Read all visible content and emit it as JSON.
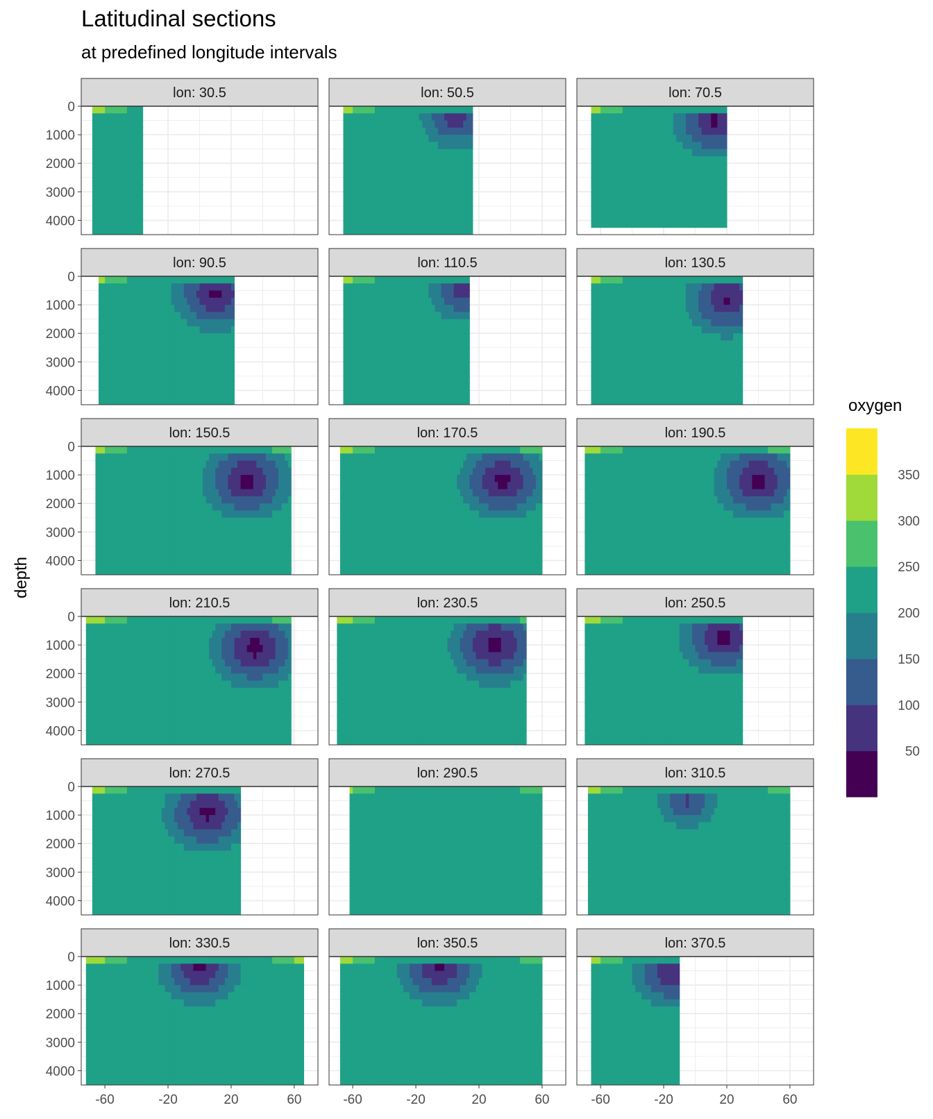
{
  "chart_data": {
    "type": "heatmap",
    "title": "Latitudinal sections",
    "subtitle": "at predefined longitude intervals",
    "xlabel": "",
    "ylabel": "depth",
    "x_ticks": [
      -60,
      -20,
      20,
      60
    ],
    "y_ticks": [
      0,
      1000,
      2000,
      3000,
      4000
    ],
    "xlim": [
      -75,
      75
    ],
    "ylim": [
      0,
      4500
    ],
    "y_reversed": true,
    "grid": true,
    "legend": {
      "title": "oxygen",
      "placement": "right",
      "breaks": [
        350,
        300,
        250,
        200,
        150,
        100,
        50
      ],
      "bins": [
        {
          "range": [
            0,
            50
          ],
          "color": "#440154"
        },
        {
          "range": [
            50,
            100
          ],
          "color": "#46337E"
        },
        {
          "range": [
            100,
            150
          ],
          "color": "#365C8D"
        },
        {
          "range": [
            150,
            200
          ],
          "color": "#277F8E"
        },
        {
          "range": [
            200,
            250
          ],
          "color": "#1FA187"
        },
        {
          "range": [
            250,
            300
          ],
          "color": "#4AC16D"
        },
        {
          "range": [
            300,
            350
          ],
          "color": "#9FDA3A"
        },
        {
          "range": [
            350,
            400
          ],
          "color": "#FDE725"
        }
      ]
    },
    "panels": [
      {
        "label": "lon: 30.5",
        "lat_range": [
          -68,
          -37
        ],
        "max_depth": 4500,
        "core": null
      },
      {
        "label": "lon: 50.5",
        "lat_range": [
          -66,
          15
        ],
        "max_depth": 4500,
        "core": {
          "lat": 5,
          "depth": 400,
          "value": 60
        }
      },
      {
        "label": "lon: 70.5",
        "lat_range": [
          -66,
          20
        ],
        "max_depth": 4100,
        "core": {
          "lat": 12,
          "depth": 500,
          "value": 30
        }
      },
      {
        "label": "lon: 90.5",
        "lat_range": [
          -64,
          22
        ],
        "max_depth": 4500,
        "core": {
          "lat": 10,
          "depth": 600,
          "value": 25
        }
      },
      {
        "label": "lon: 110.5",
        "lat_range": [
          -66,
          14
        ],
        "max_depth": 4500,
        "core": {
          "lat": 10,
          "depth": 500,
          "value": 60
        }
      },
      {
        "label": "lon: 130.5",
        "lat_range": [
          -66,
          30
        ],
        "max_depth": 4500,
        "core": {
          "lat": 20,
          "depth": 800,
          "value": 30
        }
      },
      {
        "label": "lon: 150.5",
        "lat_range": [
          -66,
          58
        ],
        "max_depth": 4500,
        "core": {
          "lat": 30,
          "depth": 1200,
          "value": 20
        }
      },
      {
        "label": "lon: 170.5",
        "lat_range": [
          -68,
          60
        ],
        "max_depth": 4500,
        "core": {
          "lat": 35,
          "depth": 1200,
          "value": 20
        }
      },
      {
        "label": "lon: 190.5",
        "lat_range": [
          -70,
          60
        ],
        "max_depth": 4500,
        "core": {
          "lat": 40,
          "depth": 1200,
          "value": 20
        }
      },
      {
        "label": "lon: 210.5",
        "lat_range": [
          -72,
          58
        ],
        "max_depth": 4500,
        "core": {
          "lat": 35,
          "depth": 1100,
          "value": 15
        }
      },
      {
        "label": "lon: 230.5",
        "lat_range": [
          -70,
          50
        ],
        "max_depth": 4500,
        "core": {
          "lat": 30,
          "depth": 1000,
          "value": 15
        }
      },
      {
        "label": "lon: 250.5",
        "lat_range": [
          -70,
          30
        ],
        "max_depth": 4500,
        "core": {
          "lat": 18,
          "depth": 700,
          "value": 20
        }
      },
      {
        "label": "lon: 270.5",
        "lat_range": [
          -68,
          25
        ],
        "max_depth": 4500,
        "core": {
          "lat": 5,
          "depth": 900,
          "value": 20
        }
      },
      {
        "label": "lon: 290.5",
        "lat_range": [
          -62,
          60
        ],
        "max_depth": 4500,
        "core": null
      },
      {
        "label": "lon: 310.5",
        "lat_range": [
          -68,
          60
        ],
        "max_depth": 4500,
        "core": {
          "lat": -5,
          "depth": 500,
          "value": 80
        }
      },
      {
        "label": "lon: 330.5",
        "lat_range": [
          -72,
          65
        ],
        "max_depth": 4500,
        "core": {
          "lat": 0,
          "depth": 400,
          "value": 30
        }
      },
      {
        "label": "lon: 350.5",
        "lat_range": [
          -68,
          60
        ],
        "max_depth": 4500,
        "core": {
          "lat": -5,
          "depth": 400,
          "value": 30
        }
      },
      {
        "label": "lon: 370.5",
        "lat_range": [
          -66,
          -10
        ],
        "max_depth": 4500,
        "core": {
          "lat": -15,
          "depth": 500,
          "value": 35
        }
      }
    ]
  }
}
